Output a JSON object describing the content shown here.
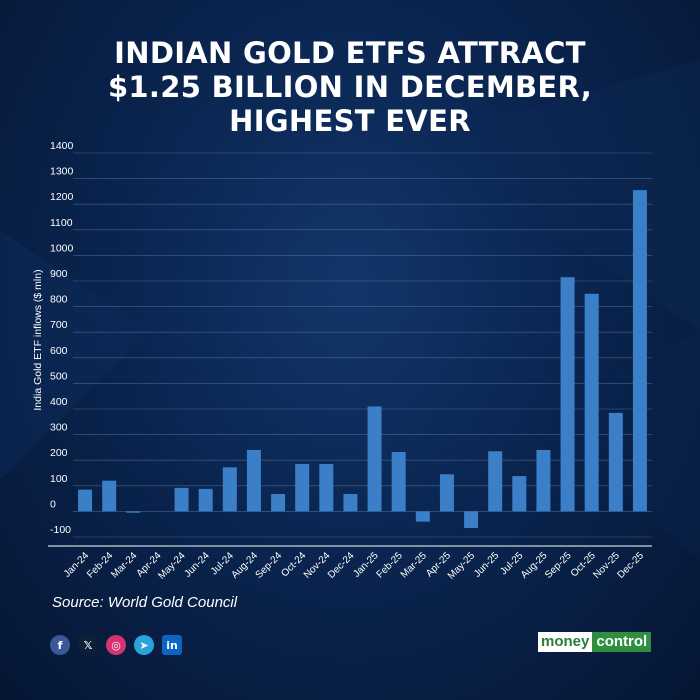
{
  "header": {
    "title_lines": [
      "INDIAN GOLD ETFS ATTRACT",
      "$1.25 BILLION IN DECEMBER,",
      "HIGHEST EVER"
    ]
  },
  "chart_data": {
    "type": "bar",
    "ylabel": "India Gold ETF inflows ($ mln)",
    "ylim": [
      -100,
      1400
    ],
    "yticks": [
      -100,
      0,
      100,
      200,
      300,
      400,
      500,
      600,
      700,
      800,
      900,
      1000,
      1100,
      1200,
      1300,
      1400
    ],
    "categories": [
      "Jan-24",
      "Feb-24",
      "Mar-24",
      "Apr-24",
      "May-24",
      "Jun-24",
      "Jul-24",
      "Aug-24",
      "Sep-24",
      "Oct-24",
      "Nov-24",
      "Dec-24",
      "Jan-25",
      "Feb-25",
      "Mar-25",
      "Apr-25",
      "May-25",
      "Jun-25",
      "Jul-25",
      "Aug-25",
      "Sep-25",
      "Oct-25",
      "Nov-25",
      "Dec-25"
    ],
    "values": [
      85,
      120,
      -5,
      0,
      92,
      88,
      172,
      240,
      68,
      185,
      185,
      68,
      410,
      232,
      -40,
      145,
      -65,
      235,
      138,
      240,
      915,
      850,
      385,
      1255
    ],
    "grid": true,
    "bar_color": "#3a7fc8"
  },
  "footer": {
    "source": "Source: World Gold Council",
    "social_icons": [
      "facebook-icon",
      "x-icon",
      "instagram-icon",
      "telegram-icon",
      "linkedin-icon"
    ],
    "logo_left": "money",
    "logo_right": "control"
  }
}
